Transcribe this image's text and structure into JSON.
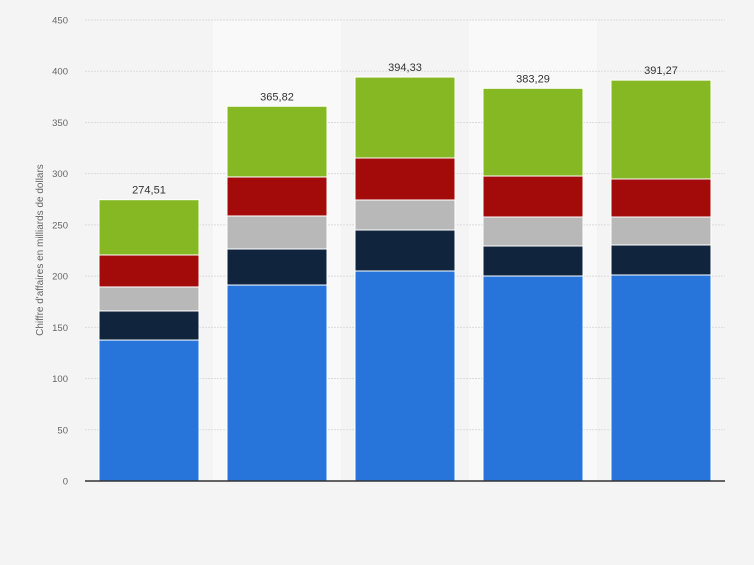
{
  "chart_data": {
    "type": "bar",
    "stacked": true,
    "title": "",
    "xlabel": "",
    "ylabel": "Chiffre d'affaires en milliards de dollars",
    "ylim": [
      0,
      450
    ],
    "yticks": [
      0,
      50,
      100,
      150,
      200,
      250,
      300,
      350,
      400,
      450
    ],
    "grid": true,
    "categories": [
      "",
      "",
      "",
      "",
      ""
    ],
    "totals": [
      "274,51",
      "365,82",
      "394,33",
      "383,29",
      "391,27"
    ],
    "series": [
      {
        "name": "",
        "color": "#2775db",
        "values": [
          137.6,
          191.3,
          205.0,
          200.1,
          201.1
        ]
      },
      {
        "name": "",
        "color": "#10253d",
        "values": [
          28.4,
          35.2,
          40.0,
          29.3,
          29.3
        ]
      },
      {
        "name": "",
        "color": "#b8b8b8",
        "values": [
          23.4,
          32.2,
          29.3,
          28.3,
          27.3
        ]
      },
      {
        "name": "",
        "color": "#a30a0a",
        "values": [
          31.2,
          38.1,
          41.0,
          40.0,
          37.1
        ]
      },
      {
        "name": "",
        "color": "#86b823",
        "values": [
          54.0,
          69.0,
          79.0,
          85.6,
          96.5
        ]
      }
    ]
  }
}
